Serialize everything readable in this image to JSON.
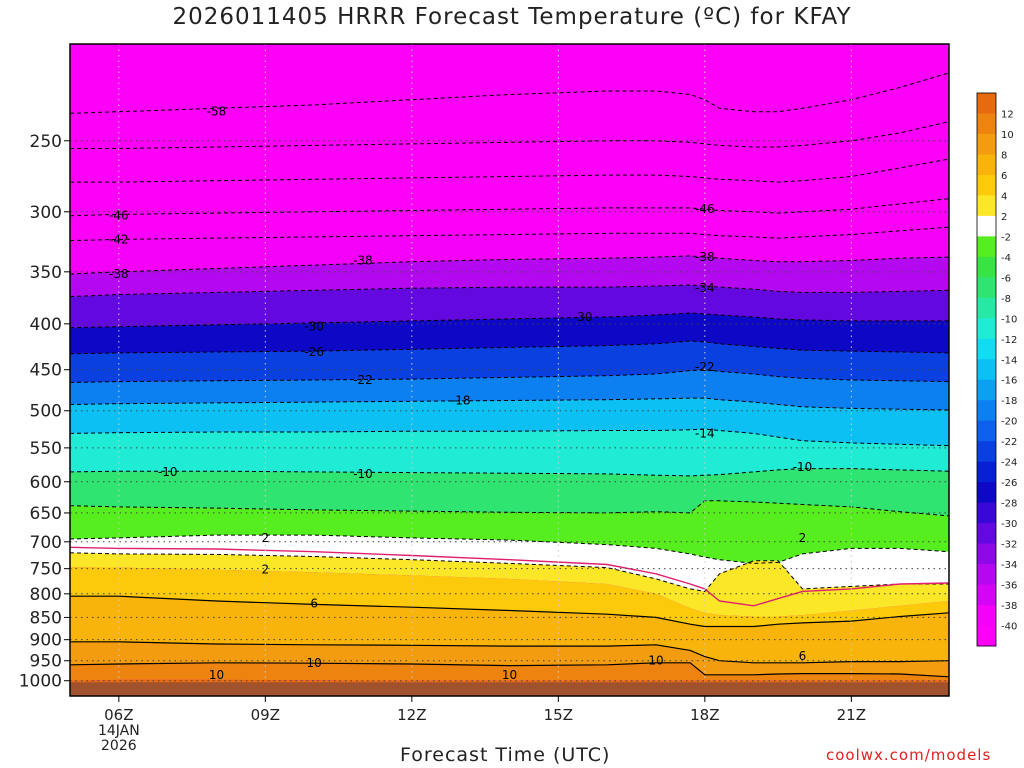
{
  "title": "2026011405 HRRR Forecast Temperature (ºC) for KFAY",
  "xlabel": "Forecast Time (UTC)",
  "credit": "coolwx.com/models",
  "chart_data": {
    "type": "heatmap",
    "title": "2026011405 HRRR Forecast Temperature (ºC) for KFAY",
    "xlabel": "Forecast Time (UTC)",
    "ylabel": "",
    "x_range_hours_utc": [
      5,
      23
    ],
    "y_scale": "log",
    "y_range_hpa": [
      1040,
      195
    ],
    "x_ticks": [
      {
        "hour": 6,
        "label": "06Z",
        "sub": [
          "14JAN",
          "2026"
        ]
      },
      {
        "hour": 9,
        "label": "09Z",
        "sub": []
      },
      {
        "hour": 12,
        "label": "12Z",
        "sub": []
      },
      {
        "hour": 15,
        "label": "15Z",
        "sub": []
      },
      {
        "hour": 18,
        "label": "18Z",
        "sub": []
      },
      {
        "hour": 21,
        "label": "21Z",
        "sub": []
      }
    ],
    "y_ticks": [
      250,
      300,
      350,
      400,
      450,
      500,
      550,
      600,
      650,
      700,
      750,
      800,
      850,
      900,
      950,
      1000
    ],
    "colorbar": {
      "labels": [
        12,
        10,
        8,
        6,
        4,
        2,
        -2,
        -4,
        -6,
        -8,
        -10,
        -12,
        -14,
        -16,
        -18,
        -20,
        -22,
        -24,
        -26,
        -28,
        -30,
        -32,
        -34,
        -36,
        -38,
        -40
      ],
      "colors": [
        "#e86a10",
        "#ee8410",
        "#f49c10",
        "#f8b40a",
        "#fcca0a",
        "#fce628",
        "#ffffff",
        "#56ee1e",
        "#38e444",
        "#30e472",
        "#28e8a6",
        "#20ecd6",
        "#12dcf2",
        "#0cc0f4",
        "#0ca0f0",
        "#0c80f0",
        "#0c60ec",
        "#0a40e0",
        "#0820d4",
        "#0c08c6",
        "#3a08d6",
        "#6408e0",
        "#8e08e8",
        "#b408f0",
        "#d604f6",
        "#f400f8",
        "#fc00f8"
      ]
    },
    "time_hours": [
      5,
      6,
      8,
      10,
      12,
      14,
      16,
      17,
      17.7,
      18,
      18.3,
      19,
      19.5,
      20,
      21,
      22,
      23
    ],
    "levels": [
      {
        "t": -2,
        "p": [
          695,
          693,
          688,
          688,
          693,
          697,
          705,
          712,
          722,
          728,
          733,
          740,
          738,
          722,
          712,
          712,
          718
        ]
      },
      {
        "t": 2,
        "p": [
          720,
          722,
          723,
          727,
          733,
          740,
          748,
          770,
          790,
          795,
          760,
          735,
          735,
          790,
          785,
          780,
          780
        ]
      },
      {
        "t": 4,
        "p": [
          747,
          748,
          752,
          757,
          763,
          770,
          780,
          800,
          830,
          840,
          845,
          848,
          848,
          845,
          835,
          825,
          815
        ]
      },
      {
        "t": 6,
        "p": [
          805,
          805,
          815,
          822,
          828,
          835,
          843,
          850,
          865,
          870,
          870,
          870,
          865,
          862,
          858,
          848,
          840
        ]
      },
      {
        "t": 8,
        "p": [
          905,
          905,
          910,
          912,
          913,
          915,
          915,
          912,
          925,
          940,
          950,
          955,
          955,
          955,
          952,
          952,
          950
        ]
      },
      {
        "t": 10,
        "p": [
          960,
          958,
          955,
          956,
          958,
          962,
          960,
          955,
          955,
          985,
          985,
          985,
          983,
          982,
          982,
          983,
          990
        ]
      },
      {
        "t": 12,
        "p": [
          1000,
          998,
          998,
          999,
          1000,
          1000,
          1000,
          1000,
          1000,
          1000,
          1000,
          1000,
          1000,
          1000,
          1000,
          1000,
          1000
        ]
      }
    ],
    "contour_labels": [
      {
        "value": "-58",
        "hour": 8.0,
        "hpa": 232
      },
      {
        "value": "-46",
        "hour": 6.0,
        "hpa": 303
      },
      {
        "value": "-46",
        "hour": 18.0,
        "hpa": 298
      },
      {
        "value": "-42",
        "hour": 6.0,
        "hpa": 322
      },
      {
        "value": "-38",
        "hour": 6.0,
        "hpa": 352
      },
      {
        "value": "-38",
        "hour": 11.0,
        "hpa": 340
      },
      {
        "value": "-38",
        "hour": 18.0,
        "hpa": 337
      },
      {
        "value": "-34",
        "hour": 18.0,
        "hpa": 365
      },
      {
        "value": "-30",
        "hour": 10.0,
        "hpa": 403
      },
      {
        "value": "-30",
        "hour": 15.5,
        "hpa": 393
      },
      {
        "value": "-26",
        "hour": 10.0,
        "hpa": 430
      },
      {
        "value": "-22",
        "hour": 11.0,
        "hpa": 462
      },
      {
        "value": "-22",
        "hour": 18.0,
        "hpa": 447
      },
      {
        "value": "-18",
        "hour": 13.0,
        "hpa": 487
      },
      {
        "value": "-14",
        "hour": 18.0,
        "hpa": 530
      },
      {
        "value": "-10",
        "hour": 7.0,
        "hpa": 585
      },
      {
        "value": "-10",
        "hour": 11.0,
        "hpa": 588
      },
      {
        "value": "-10",
        "hour": 20.0,
        "hpa": 578
      },
      {
        "value": "2",
        "hour": 9.0,
        "hpa": 693
      },
      {
        "value": "2",
        "hour": 20.0,
        "hpa": 693
      },
      {
        "value": "2",
        "hour": 9.0,
        "hpa": 752
      },
      {
        "value": "6",
        "hour": 10.0,
        "hpa": 820
      },
      {
        "value": "6",
        "hour": 20.0,
        "hpa": 938
      },
      {
        "value": "10",
        "hour": 8.0,
        "hpa": 985
      },
      {
        "value": "10",
        "hour": 10.0,
        "hpa": 955
      },
      {
        "value": "10",
        "hour": 14.0,
        "hpa": 985
      },
      {
        "value": "10",
        "hour": 17.0,
        "hpa": 950
      }
    ],
    "dashed_isotherms": [
      {
        "t": -58,
        "p": [
          233,
          232,
          230,
          228,
          225,
          222,
          220,
          220,
          222,
          225,
          230,
          232,
          232,
          230,
          225,
          218,
          210
        ]
      },
      {
        "t": -54,
        "p": [
          255,
          255,
          254,
          253,
          252,
          251,
          250,
          250,
          251,
          252,
          253,
          254,
          254,
          253,
          250,
          245,
          238
        ]
      },
      {
        "t": -50,
        "p": [
          278,
          278,
          277,
          276,
          275,
          274,
          273,
          273,
          274,
          275,
          276,
          277,
          278,
          277,
          274,
          268,
          262
        ]
      },
      {
        "t": -46,
        "p": [
          303,
          302,
          301,
          300,
          299,
          298,
          297,
          297,
          297,
          298,
          299,
          300,
          301,
          300,
          298,
          294,
          290
        ]
      },
      {
        "t": -42,
        "p": [
          323,
          322,
          321,
          320,
          319,
          318,
          317,
          317,
          317,
          318,
          319,
          320,
          321,
          320,
          318,
          315,
          312
        ]
      },
      {
        "t": -38,
        "p": [
          352,
          350,
          347,
          344,
          341,
          339,
          338,
          337,
          336,
          337,
          338,
          340,
          341,
          341,
          340,
          338,
          337
        ]
      },
      {
        "t": -34,
        "p": [
          373,
          371,
          369,
          367,
          365,
          364,
          364,
          363,
          362,
          363,
          364,
          366,
          368,
          369,
          369,
          368,
          367
        ]
      },
      {
        "t": -30,
        "p": [
          404,
          403,
          401,
          399,
          397,
          395,
          393,
          391,
          389,
          390,
          391,
          393,
          395,
          396,
          397,
          397,
          397
        ]
      },
      {
        "t": -26,
        "p": [
          432,
          431,
          430,
          429,
          427,
          425,
          423,
          421,
          418,
          419,
          421,
          424,
          426,
          428,
          429,
          430,
          431
        ]
      },
      {
        "t": -22,
        "p": [
          465,
          464,
          463,
          462,
          461,
          459,
          457,
          455,
          451,
          450,
          452,
          455,
          458,
          460,
          462,
          463,
          464
        ]
      },
      {
        "t": -18,
        "p": [
          492,
          491,
          490,
          489,
          488,
          487,
          486,
          485,
          484,
          484,
          486,
          489,
          492,
          495,
          497,
          498,
          499
        ]
      },
      {
        "t": -14,
        "p": [
          530,
          529,
          528,
          528,
          527,
          527,
          526,
          526,
          525,
          524,
          526,
          530,
          535,
          540,
          543,
          545,
          547
        ]
      },
      {
        "t": -10,
        "p": [
          585,
          584,
          584,
          585,
          586,
          587,
          588,
          590,
          591,
          590,
          589,
          585,
          582,
          580,
          580,
          582,
          584
        ]
      },
      {
        "t": -6,
        "p": [
          638,
          640,
          642,
          645,
          647,
          649,
          650,
          648,
          650,
          630,
          630,
          632,
          634,
          636,
          640,
          648,
          655
        ]
      },
      {
        "t": -2,
        "p": [
          695,
          693,
          688,
          688,
          693,
          697,
          705,
          712,
          722,
          728,
          733,
          740,
          738,
          722,
          712,
          712,
          718
        ]
      },
      {
        "t": 2,
        "p": [
          720,
          722,
          723,
          727,
          733,
          740,
          748,
          770,
          790,
          795,
          760,
          735,
          735,
          790,
          785,
          780,
          780
        ]
      }
    ],
    "solid_isotherms": [
      {
        "t": 6,
        "p": [
          805,
          805,
          815,
          822,
          828,
          835,
          843,
          850,
          865,
          870,
          870,
          870,
          865,
          862,
          858,
          848,
          840
        ]
      },
      {
        "t": 8,
        "p": [
          905,
          905,
          910,
          912,
          913,
          915,
          915,
          912,
          925,
          940,
          950,
          955,
          955,
          955,
          952,
          952,
          950
        ]
      },
      {
        "t": 10,
        "p": [
          960,
          958,
          955,
          956,
          958,
          962,
          960,
          955,
          955,
          985,
          985,
          985,
          983,
          982,
          982,
          983,
          990
        ]
      }
    ],
    "zero_line": {
      "t": 0,
      "p": [
        710,
        712,
        713,
        718,
        725,
        733,
        742,
        760,
        780,
        790,
        815,
        825,
        810,
        795,
        790,
        780,
        778
      ]
    },
    "ground": {
      "pressure_hpa": 1004,
      "color": "#a0522d"
    }
  }
}
